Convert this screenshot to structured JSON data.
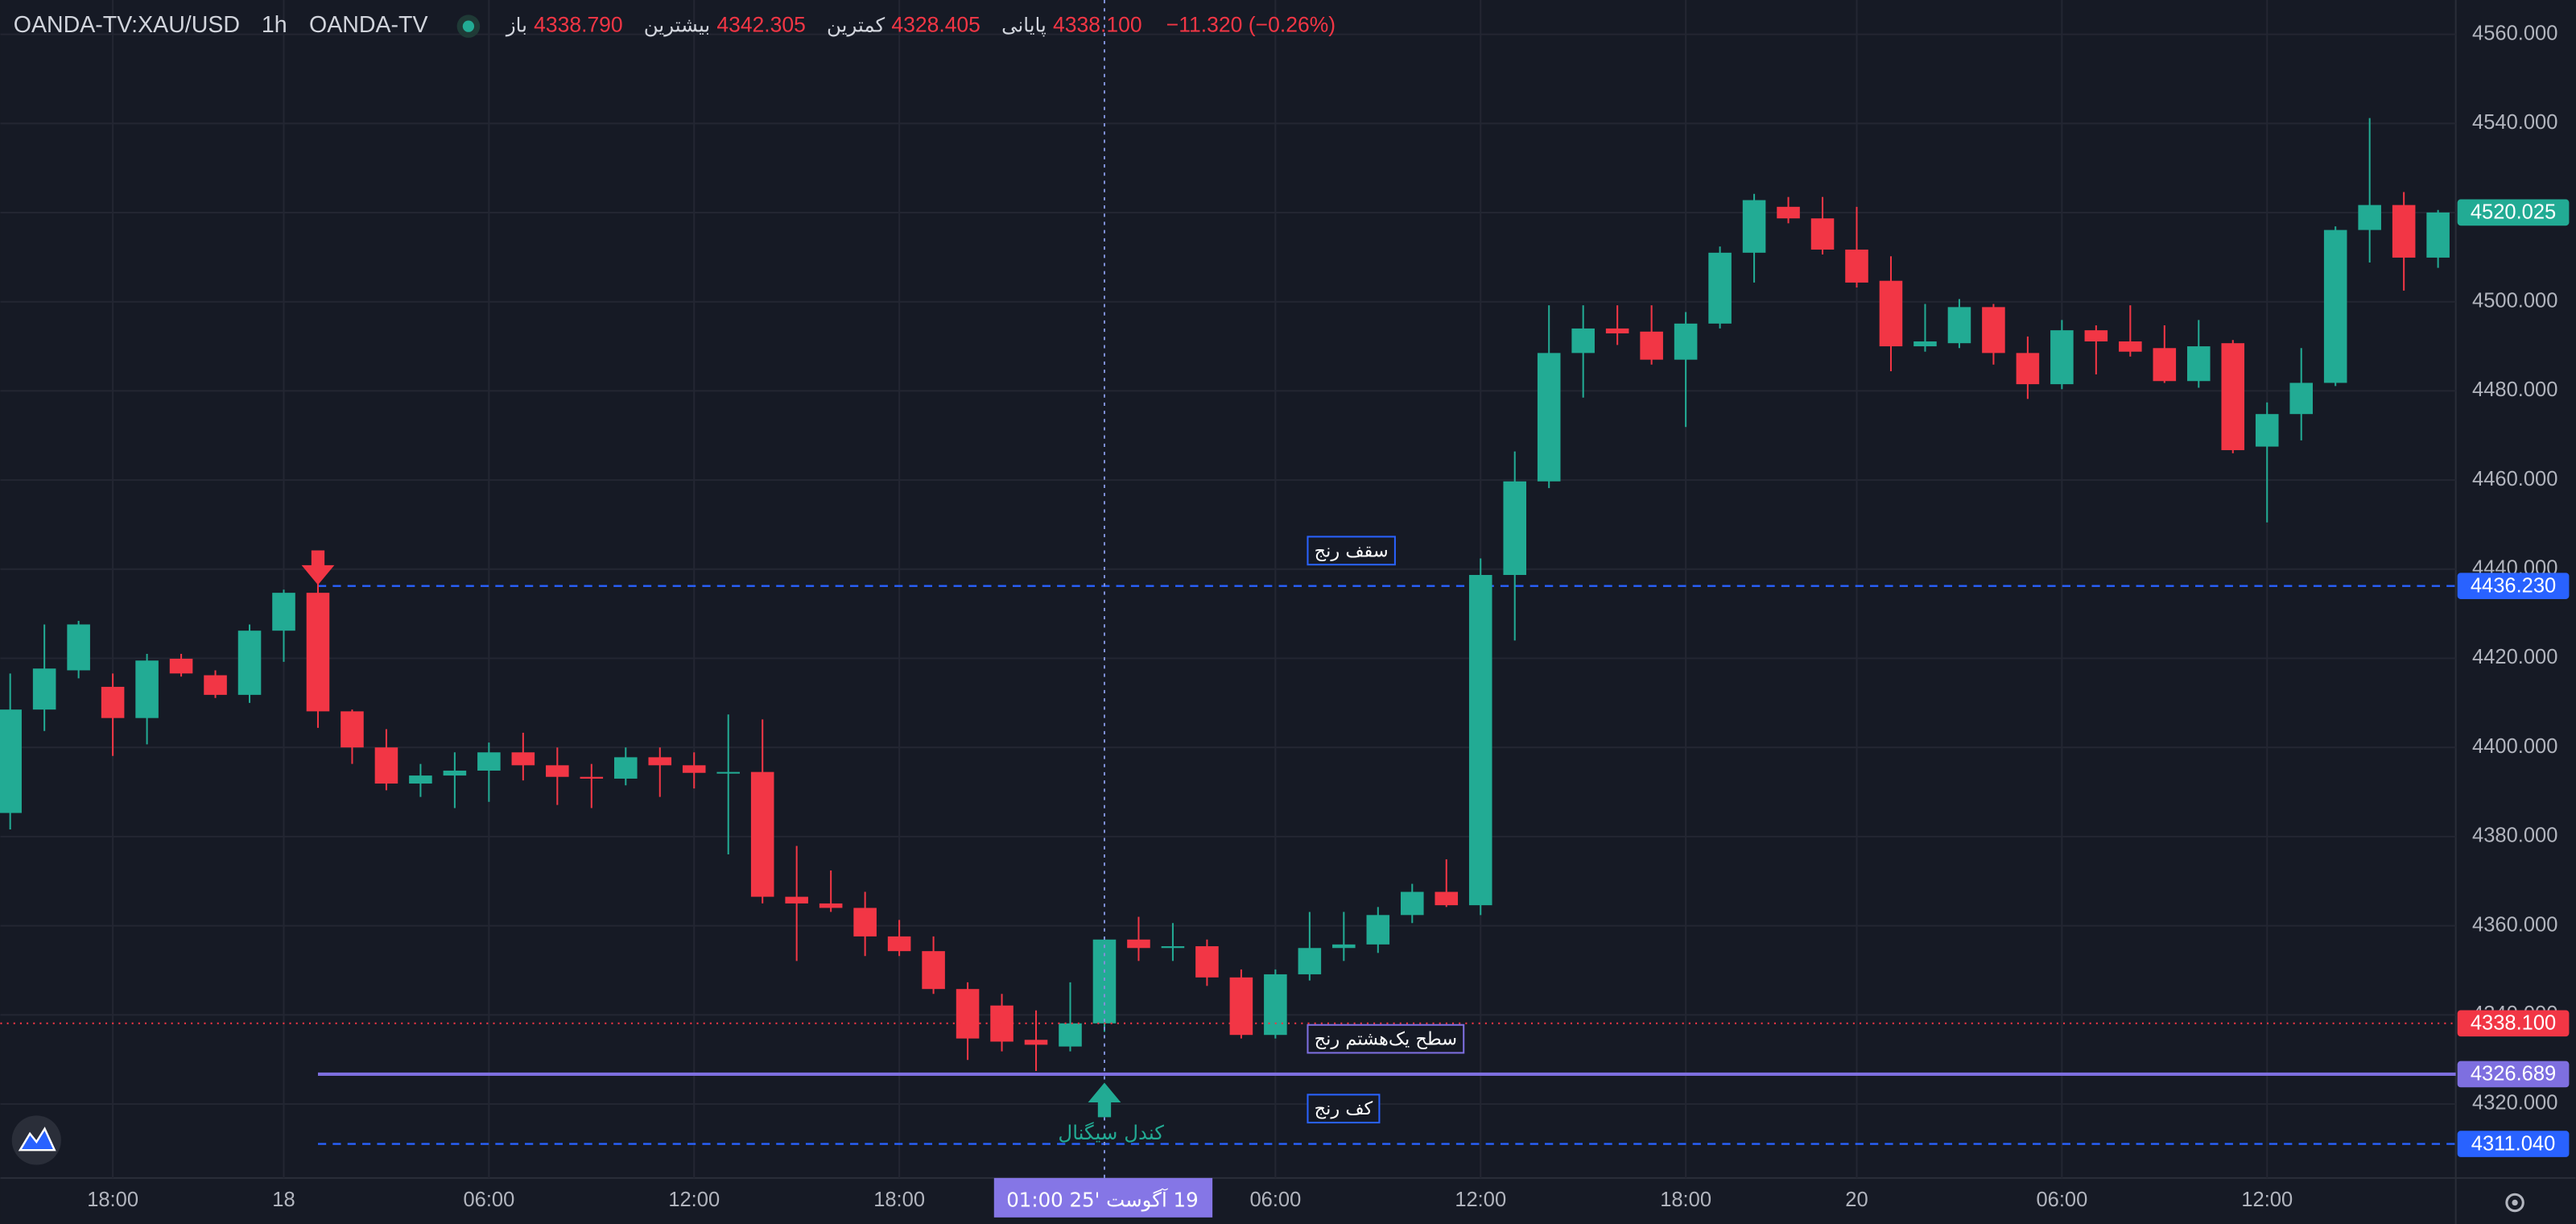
{
  "chart_data": {
    "type": "candlestick",
    "symbol": "OANDA-TV:XAU/USD",
    "interval": "1h",
    "source": "OANDA-TV",
    "legend": [
      {
        "name": "باز",
        "value": "4338.790"
      },
      {
        "name": "بیشترین",
        "value": "4342.305"
      },
      {
        "name": "کمترین",
        "value": "4328.405"
      },
      {
        "name": "پایانی",
        "value": "4338.100"
      }
    ],
    "change": "−11.320 (−0.26%)",
    "up_color": "#22ab94",
    "down_color": "#f23645",
    "grid": true,
    "categories": [
      null,
      null,
      null,
      "18:00",
      null,
      null,
      null,
      null,
      "18",
      null,
      null,
      null,
      null,
      null,
      "06:00",
      null,
      null,
      null,
      null,
      null,
      "12:00",
      null,
      null,
      null,
      null,
      null,
      "18:00",
      null,
      null,
      null,
      null,
      null,
      null,
      null,
      null,
      null,
      null,
      "06:00",
      null,
      null,
      null,
      null,
      null,
      "12:00",
      null,
      null,
      null,
      null,
      null,
      "18:00",
      null,
      null,
      null,
      null,
      "20",
      null,
      null,
      null,
      null,
      null,
      "06:00",
      null,
      null,
      null,
      null,
      null,
      "12:00",
      null,
      null,
      null,
      null,
      null
    ],
    "open": [
      4385.3,
      4408.5,
      4417.3,
      4413.6,
      4406.6,
      4419.9,
      4416.2,
      4411.8,
      4426.2,
      4434.7,
      4408.1,
      4400.0,
      4391.9,
      4393.7,
      4394.8,
      4398.9,
      4396.0,
      4393.4,
      4393.0,
      4397.8,
      4396.0,
      4394.3,
      4394.5,
      4366.5,
      4365.0,
      4364.0,
      4357.6,
      4354.3,
      4345.8,
      4342.1,
      4334.4,
      4332.9,
      4338.1,
      4356.9,
      4355.0,
      4355.4,
      4348.4,
      4335.5,
      4349.1,
      4355.0,
      4355.8,
      4362.4,
      4367.6,
      4364.6,
      4438.7,
      4459.7,
      4488.5,
      4494.0,
      4493.3,
      4487.0,
      4495.1,
      4511.0,
      4521.3,
      4518.7,
      4511.7,
      4504.7,
      4490.0,
      4490.7,
      4498.8,
      4488.5,
      4481.5,
      4493.6,
      4491.1,
      4489.6,
      4482.2,
      4490.7,
      4467.5,
      4474.8,
      4481.8,
      4516.1,
      4521.7,
      4509.9
    ],
    "high": [
      4416.6,
      4427.6,
      4428.4,
      4416.6,
      4421.0,
      4421.0,
      4417.3,
      4427.6,
      4435.4,
      4436.9,
      4408.5,
      4404.1,
      4396.3,
      4398.9,
      4401.1,
      4403.3,
      4400.0,
      4396.3,
      4400.0,
      4400.0,
      4398.9,
      4407.4,
      4406.3,
      4377.9,
      4372.4,
      4367.6,
      4361.3,
      4357.6,
      4347.3,
      4344.7,
      4341.0,
      4347.3,
      4357.6,
      4362.0,
      4360.6,
      4356.9,
      4350.2,
      4350.2,
      4363.1,
      4363.1,
      4364.2,
      4369.4,
      4374.9,
      4442.4,
      4466.4,
      4499.2,
      4499.2,
      4499.2,
      4499.2,
      4497.7,
      4512.4,
      4524.2,
      4523.5,
      4523.5,
      4521.3,
      4510.2,
      4499.5,
      4500.6,
      4499.5,
      4492.2,
      4495.9,
      4494.7,
      4499.2,
      4494.7,
      4495.9,
      4491.4,
      4477.4,
      4489.6,
      4516.9,
      4541.2,
      4524.6,
      4520.6
    ],
    "low": [
      4381.6,
      4403.7,
      4415.5,
      4398.1,
      4400.7,
      4415.9,
      4411.1,
      4410.0,
      4419.2,
      4404.4,
      4396.3,
      4390.4,
      4388.9,
      4386.4,
      4387.8,
      4392.6,
      4387.1,
      4386.4,
      4391.5,
      4388.9,
      4390.8,
      4376.0,
      4365.0,
      4352.1,
      4363.1,
      4353.2,
      4353.2,
      4344.7,
      4329.9,
      4331.8,
      4327.4,
      4331.8,
      4336.2,
      4352.1,
      4352.1,
      4346.5,
      4334.7,
      4334.7,
      4347.7,
      4352.1,
      4353.9,
      4360.6,
      4364.2,
      4362.4,
      4424.0,
      4458.2,
      4478.5,
      4490.3,
      4485.9,
      4471.9,
      4494.0,
      4504.3,
      4517.6,
      4510.6,
      4503.2,
      4484.4,
      4488.8,
      4489.6,
      4485.9,
      4478.2,
      4480.4,
      4483.7,
      4487.7,
      4481.8,
      4480.7,
      4466.0,
      4450.5,
      4468.9,
      4481.1,
      4508.8,
      4502.5,
      4507.6
    ],
    "close": [
      4408.5,
      4417.7,
      4427.6,
      4406.6,
      4419.5,
      4416.6,
      4411.8,
      4426.2,
      4434.7,
      4408.1,
      4400.0,
      4391.9,
      4393.7,
      4394.8,
      4398.9,
      4396.0,
      4393.4,
      4393.0,
      4397.8,
      4396.0,
      4394.3,
      4394.5,
      4366.5,
      4365.0,
      4364.0,
      4357.6,
      4354.3,
      4345.8,
      4334.7,
      4334.0,
      4333.3,
      4338.1,
      4356.9,
      4355.0,
      4355.4,
      4348.4,
      4335.5,
      4349.1,
      4355.0,
      4355.8,
      4362.4,
      4367.6,
      4364.6,
      4438.7,
      4459.7,
      4488.5,
      4494.0,
      4492.9,
      4487.0,
      4495.1,
      4511.0,
      4522.8,
      4518.7,
      4511.7,
      4504.3,
      4490.0,
      4491.1,
      4498.8,
      4488.5,
      4481.5,
      4493.6,
      4491.1,
      4488.8,
      4482.2,
      4490.0,
      4466.7,
      4474.8,
      4481.8,
      4516.1,
      4521.7,
      4509.9,
      4520.025
    ],
    "ylim": [
      4303.4,
      4567.7
    ],
    "yticks": [
      {
        "value": 4320,
        "label": "4320.000"
      },
      {
        "value": 4340,
        "label": "4340.000"
      },
      {
        "value": 4360,
        "label": "4360.000"
      },
      {
        "value": 4380,
        "label": "4380.000"
      },
      {
        "value": 4400,
        "label": "4400.000"
      },
      {
        "value": 4420,
        "label": "4420.000"
      },
      {
        "value": 4440,
        "label": "4440.000"
      },
      {
        "value": 4460,
        "label": "4460.000"
      },
      {
        "value": 4480,
        "label": "4480.000"
      },
      {
        "value": 4500,
        "label": "4500.000"
      },
      {
        "value": 4520,
        "label": "4520.000"
      },
      {
        "value": 4540,
        "label": "4540.000"
      },
      {
        "value": 4560,
        "label": "4560.000"
      }
    ],
    "levels": [
      {
        "name": "سقف رنج",
        "value": 4436.23,
        "label": "4436.230",
        "color": "#2962ff",
        "style": "dashed"
      },
      {
        "name": "سطح یک‌هشتم رنج",
        "value": 4326.689,
        "label": "4326.689",
        "color": "#7e6fe0",
        "style": "solid"
      },
      {
        "name": "کف رنج",
        "value": 4311.04,
        "label": "4311.040",
        "color": "#2962ff",
        "style": "dashed"
      }
    ],
    "crosshair": {
      "value": 4338.1,
      "label": "4338.100",
      "time": "19 آگوست '25  01:00",
      "color": "#f23645"
    },
    "last_price": {
      "value": 4520.025,
      "label": "4520.025",
      "color": "#22ab94"
    },
    "signal_label": "کندل سیگنال"
  }
}
